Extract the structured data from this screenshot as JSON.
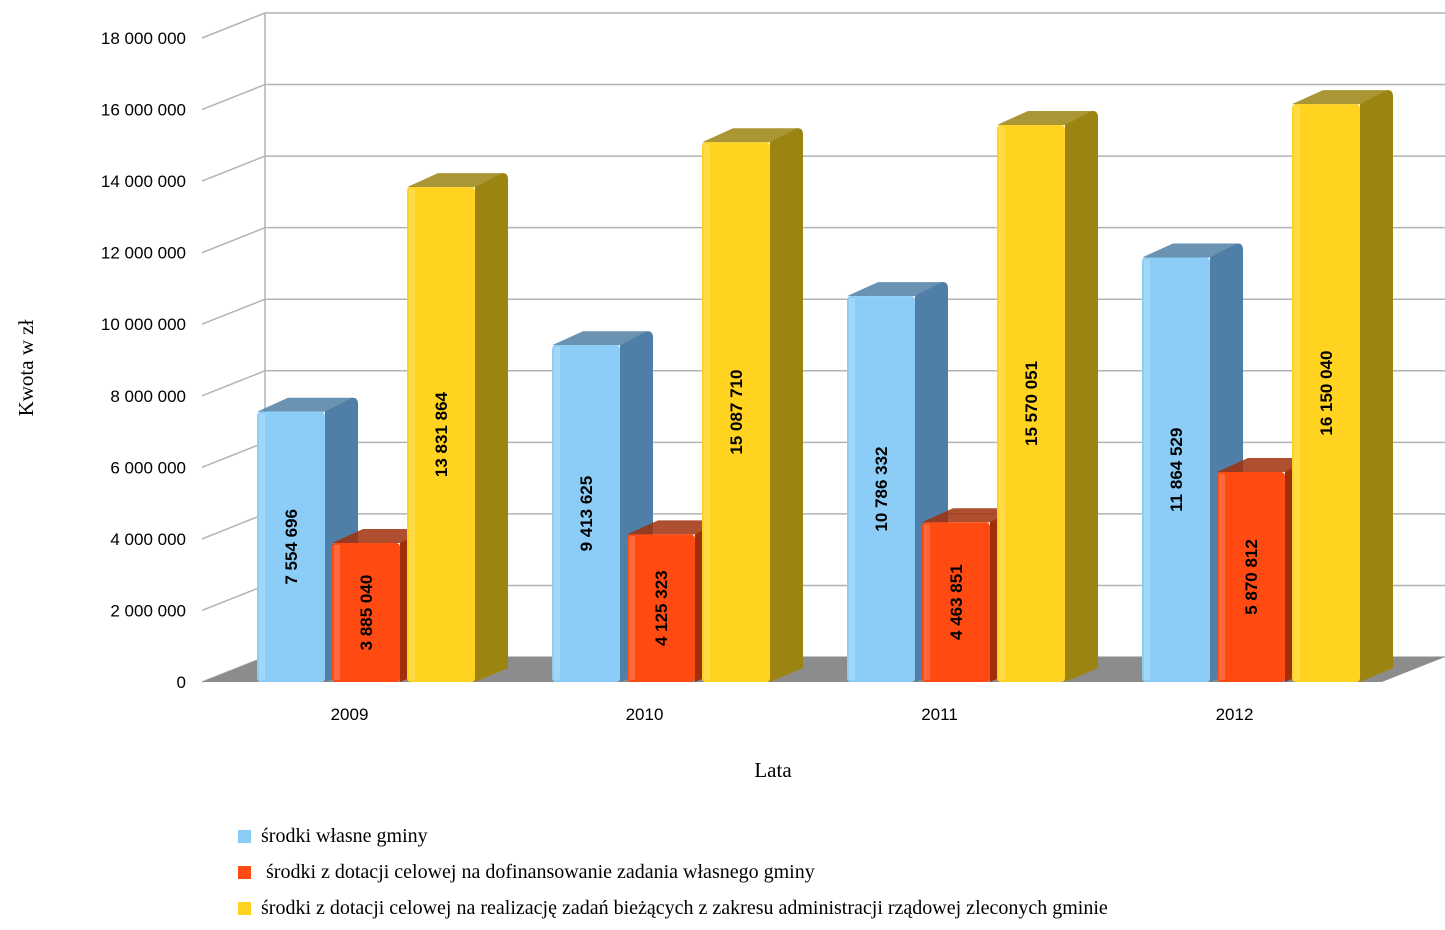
{
  "chart_data": {
    "type": "bar",
    "variant": "3d-clustered-column",
    "title": "",
    "xlabel": "Lata",
    "ylabel": "Kwota w zł",
    "ylim": [
      0,
      18000000
    ],
    "yticks": [
      0,
      2000000,
      4000000,
      6000000,
      8000000,
      10000000,
      12000000,
      14000000,
      16000000,
      18000000
    ],
    "ytick_labels": [
      "0",
      "2 000 000",
      "4 000 000",
      "6 000 000",
      "8 000 000",
      "10 000 000",
      "12 000 000",
      "14 000 000",
      "16 000 000",
      "18 000 000"
    ],
    "grid": true,
    "legend_position": "bottom",
    "categories": [
      "2009",
      "2010",
      "2011",
      "2012"
    ],
    "series": [
      {
        "name": "środki własne gminy",
        "color": "#8ccdf7",
        "side_color": "#4f7fa6",
        "values": [
          7554696,
          9413625,
          10786332,
          11864529
        ],
        "labels": [
          "7 554 696",
          "9 413 625",
          "10 786 332",
          "11 864 529"
        ]
      },
      {
        "name": " środki z dotacji celowej na dofinansowanie zadania własnego gminy",
        "color": "#ff4a12",
        "side_color": "#a0300c",
        "values": [
          3885040,
          4125323,
          4463851,
          5870812
        ],
        "labels": [
          "3 885 040",
          "4 125 323",
          "4 463 851",
          "5 870 812"
        ]
      },
      {
        "name": "środki z dotacji celowej na realizację zadań bieżących z zakresu administracji rządowej zleconych gminie",
        "color": "#ffd31f",
        "side_color": "#9c8412",
        "values": [
          13831864,
          15087710,
          15570051,
          16150040
        ],
        "labels": [
          "13 831 864",
          "15 087 710",
          "15 570 051",
          "16 150 040"
        ]
      }
    ]
  }
}
